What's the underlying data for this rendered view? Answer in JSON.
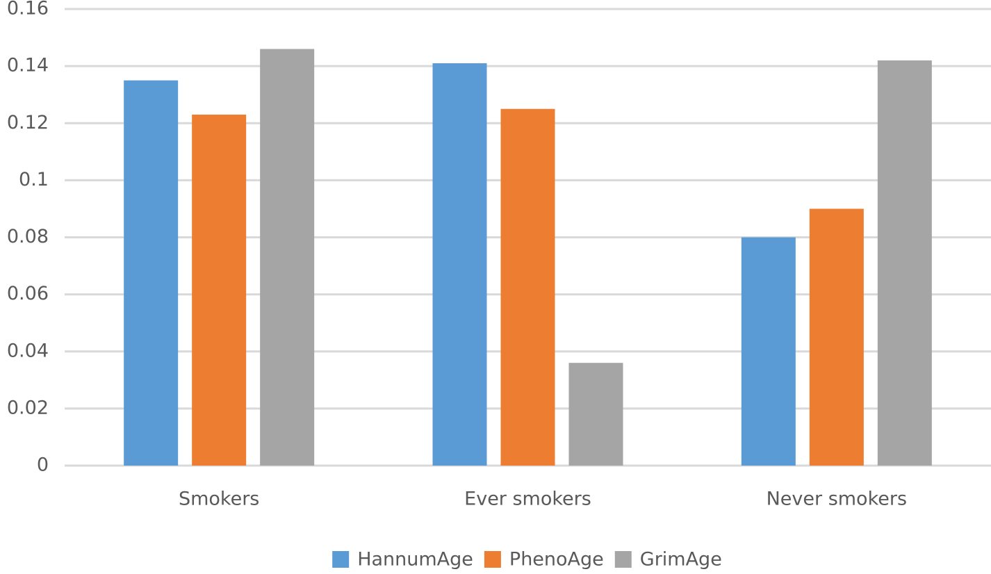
{
  "chart_data": {
    "type": "bar",
    "categories": [
      "Smokers",
      "Ever smokers",
      "Never smokers"
    ],
    "series": [
      {
        "name": "HannumAge",
        "color": "#5b9bd5",
        "values": [
          0.135,
          0.141,
          0.08
        ]
      },
      {
        "name": "PhenoAge",
        "color": "#ed7d31",
        "values": [
          0.123,
          0.125,
          0.09
        ]
      },
      {
        "name": "GrimAge",
        "color": "#a5a5a5",
        "values": [
          0.146,
          0.036,
          0.142
        ]
      }
    ],
    "ylim": [
      0,
      0.16
    ],
    "yticks": [
      0,
      0.02,
      0.04,
      0.06,
      0.08,
      0.1,
      0.12,
      0.14,
      0.16
    ],
    "grid": true,
    "legend": "bottom"
  }
}
